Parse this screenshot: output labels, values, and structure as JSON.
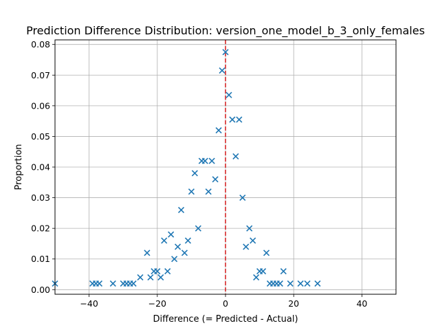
{
  "chart_data": {
    "type": "scatter",
    "title": "Prediction Difference Distribution: version_one_model_b_3_only_females",
    "xlabel": "Difference (= Predicted - Actual)",
    "ylabel": "Proportion",
    "xlim": [
      -50,
      50
    ],
    "ylim": [
      -0.0015,
      0.0815
    ],
    "grid": true,
    "marker": "x",
    "series_color": "#1f77b4",
    "vline": {
      "x": 0,
      "color": "#d62728",
      "style": "dashed"
    },
    "x_ticks": [
      {
        "value": -40,
        "label": "−40"
      },
      {
        "value": -20,
        "label": "−20"
      },
      {
        "value": 0,
        "label": "0"
      },
      {
        "value": 20,
        "label": "20"
      },
      {
        "value": 40,
        "label": "40"
      }
    ],
    "y_ticks": [
      {
        "value": 0.0,
        "label": "0.00"
      },
      {
        "value": 0.01,
        "label": "0.01"
      },
      {
        "value": 0.02,
        "label": "0.02"
      },
      {
        "value": 0.03,
        "label": "0.03"
      },
      {
        "value": 0.04,
        "label": "0.04"
      },
      {
        "value": 0.05,
        "label": "0.05"
      },
      {
        "value": 0.06,
        "label": "0.06"
      },
      {
        "value": 0.07,
        "label": "0.07"
      },
      {
        "value": 0.08,
        "label": "0.08"
      }
    ],
    "points": [
      {
        "x": -50,
        "y": 0.002
      },
      {
        "x": -39,
        "y": 0.002
      },
      {
        "x": -38,
        "y": 0.002
      },
      {
        "x": -37,
        "y": 0.002
      },
      {
        "x": -33,
        "y": 0.002
      },
      {
        "x": -30,
        "y": 0.002
      },
      {
        "x": -29,
        "y": 0.002
      },
      {
        "x": -28,
        "y": 0.002
      },
      {
        "x": -27,
        "y": 0.002
      },
      {
        "x": -25,
        "y": 0.004
      },
      {
        "x": -23,
        "y": 0.012
      },
      {
        "x": -22,
        "y": 0.004
      },
      {
        "x": -21,
        "y": 0.006
      },
      {
        "x": -20,
        "y": 0.006
      },
      {
        "x": -19,
        "y": 0.004
      },
      {
        "x": -18,
        "y": 0.016
      },
      {
        "x": -17,
        "y": 0.006
      },
      {
        "x": -16,
        "y": 0.018
      },
      {
        "x": -15,
        "y": 0.01
      },
      {
        "x": -14,
        "y": 0.014
      },
      {
        "x": -13,
        "y": 0.026
      },
      {
        "x": -12,
        "y": 0.012
      },
      {
        "x": -11,
        "y": 0.016
      },
      {
        "x": -10,
        "y": 0.032
      },
      {
        "x": -9,
        "y": 0.038
      },
      {
        "x": -8,
        "y": 0.02
      },
      {
        "x": -7,
        "y": 0.042
      },
      {
        "x": -6,
        "y": 0.042
      },
      {
        "x": -5,
        "y": 0.032
      },
      {
        "x": -4,
        "y": 0.042
      },
      {
        "x": -3,
        "y": 0.036
      },
      {
        "x": -2,
        "y": 0.052
      },
      {
        "x": -1,
        "y": 0.0715
      },
      {
        "x": 0,
        "y": 0.0775
      },
      {
        "x": 1,
        "y": 0.0635
      },
      {
        "x": 2,
        "y": 0.0555
      },
      {
        "x": 3,
        "y": 0.0435
      },
      {
        "x": 4,
        "y": 0.0555
      },
      {
        "x": 5,
        "y": 0.03
      },
      {
        "x": 6,
        "y": 0.014
      },
      {
        "x": 7,
        "y": 0.02
      },
      {
        "x": 8,
        "y": 0.016
      },
      {
        "x": 9,
        "y": 0.004
      },
      {
        "x": 10,
        "y": 0.006
      },
      {
        "x": 11,
        "y": 0.006
      },
      {
        "x": 12,
        "y": 0.012
      },
      {
        "x": 13,
        "y": 0.002
      },
      {
        "x": 14,
        "y": 0.002
      },
      {
        "x": 15,
        "y": 0.002
      },
      {
        "x": 16,
        "y": 0.002
      },
      {
        "x": 17,
        "y": 0.006
      },
      {
        "x": 19,
        "y": 0.002
      },
      {
        "x": 22,
        "y": 0.002
      },
      {
        "x": 24,
        "y": 0.002
      },
      {
        "x": 27,
        "y": 0.002
      }
    ]
  }
}
